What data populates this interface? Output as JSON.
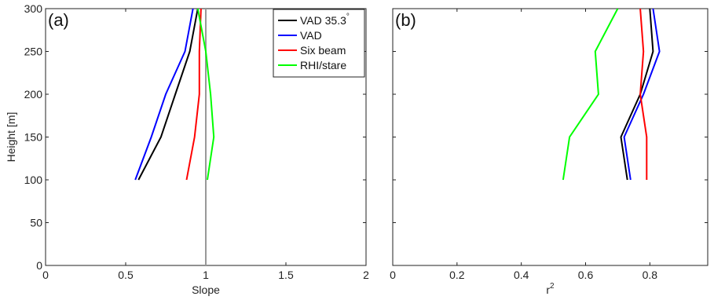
{
  "chart_data": [
    {
      "type": "line",
      "panel_label": "(a)",
      "xlabel": "Slope",
      "ylabel": "Height [m]",
      "xlim": [
        0,
        2
      ],
      "ylim": [
        0,
        300
      ],
      "xticks": [
        0,
        0.5,
        1,
        1.5,
        2
      ],
      "xtick_labels": [
        "0",
        "0.5",
        "1",
        "1.5",
        "2"
      ],
      "yticks": [
        0,
        50,
        100,
        150,
        200,
        250,
        300
      ],
      "ytick_labels": [
        "0",
        "50",
        "100",
        "150",
        "200",
        "250",
        "300"
      ],
      "reference_line": {
        "x": 1,
        "color": "#999999"
      },
      "legend": {
        "placement": "top-right",
        "entries": [
          {
            "label": "VAD 35.3",
            "superscript": "°",
            "color": "#000000"
          },
          {
            "label": "VAD",
            "color": "#0000ff"
          },
          {
            "label": "Six beam",
            "color": "#ff0000"
          },
          {
            "label": "RHI/stare",
            "color": "#00ff00"
          }
        ]
      },
      "series": [
        {
          "name": "VAD 35.3°",
          "color": "#000000",
          "x": [
            0.58,
            0.72,
            0.81,
            0.9,
            0.95
          ],
          "y": [
            100,
            150,
            200,
            250,
            300
          ]
        },
        {
          "name": "VAD",
          "color": "#0000ff",
          "x": [
            0.56,
            0.66,
            0.75,
            0.87,
            0.92
          ],
          "y": [
            100,
            150,
            200,
            250,
            300
          ]
        },
        {
          "name": "Six beam",
          "color": "#ff0000",
          "x": [
            0.88,
            0.93,
            0.96,
            0.96,
            0.97
          ],
          "y": [
            100,
            150,
            200,
            250,
            300
          ]
        },
        {
          "name": "RHI/stare",
          "color": "#00ff00",
          "x": [
            1.01,
            1.05,
            1.03,
            1.0,
            0.95
          ],
          "y": [
            100,
            150,
            200,
            250,
            300
          ]
        }
      ]
    },
    {
      "type": "line",
      "panel_label": "(b)",
      "xlabel": "r",
      "xlabel_superscript": "2",
      "ylabel": "",
      "xlim": [
        0,
        0.98
      ],
      "ylim": [
        0,
        300
      ],
      "xticks": [
        0,
        0.2,
        0.4,
        0.6,
        0.8
      ],
      "xtick_labels": [
        "0",
        "0.2",
        "0.4",
        "0.6",
        "0.8"
      ],
      "yticks": [
        0,
        50,
        100,
        150,
        200,
        250,
        300
      ],
      "ytick_labels": [],
      "series": [
        {
          "name": "VAD 35.3°",
          "color": "#000000",
          "x": [
            0.73,
            0.71,
            0.77,
            0.81,
            0.8
          ],
          "y": [
            100,
            150,
            200,
            250,
            300
          ]
        },
        {
          "name": "VAD",
          "color": "#0000ff",
          "x": [
            0.74,
            0.72,
            0.78,
            0.83,
            0.81
          ],
          "y": [
            100,
            150,
            200,
            250,
            300
          ]
        },
        {
          "name": "Six beam",
          "color": "#ff0000",
          "x": [
            0.79,
            0.79,
            0.77,
            0.78,
            0.77
          ],
          "y": [
            100,
            150,
            200,
            250,
            300
          ]
        },
        {
          "name": "RHI/stare",
          "color": "#00ff00",
          "x": [
            0.53,
            0.55,
            0.64,
            0.63,
            0.7
          ],
          "y": [
            100,
            150,
            200,
            250,
            300
          ]
        }
      ]
    }
  ]
}
